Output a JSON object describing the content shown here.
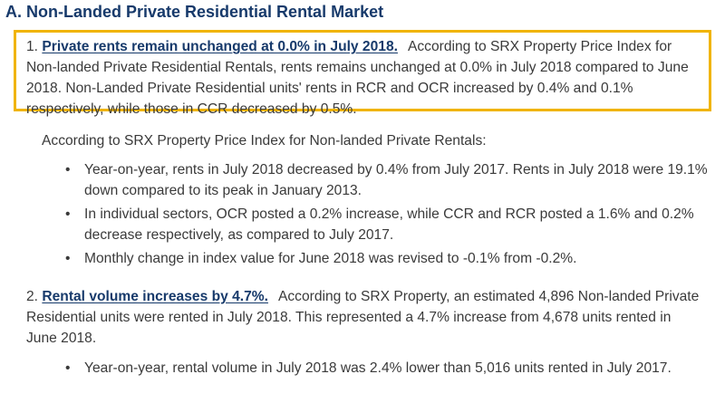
{
  "section": {
    "heading": "A. Non-Landed Private Residential Rental Market"
  },
  "item1": {
    "number": "1.",
    "lead": "Private rents remain unchanged at 0.0% in July 2018.",
    "body": "According to SRX Property Price Index for Non-landed Private Residential Rentals, rents remains unchanged at 0.0% in July 2018 compared to June 2018. Non-Landed Private Residential units' rents in RCR and OCR increased by 0.4% and 0.1% respectively, while those in CCR decreased by 0.5%.",
    "highlight_color": "#f0b400"
  },
  "intro": "According to SRX Property Price Index for Non-landed Private Rentals:",
  "bullets_a": [
    "Year-on-year, rents in July 2018 decreased by 0.4% from July 2017. Rents in July 2018 were 19.1% down compared to its peak in January 2013.",
    "In individual sectors, OCR posted a 0.2% increase, while CCR and RCR posted a 1.6% and 0.2% decrease respectively, as compared to July 2017.",
    "Monthly change in index value for June 2018 was revised to -0.1% from -0.2%."
  ],
  "item2": {
    "number": "2.",
    "lead": "Rental volume increases by 4.7%.",
    "body": "According to SRX Property, an estimated 4,896 Non-landed Private Residential units were rented in July 2018. This represented a 4.7% increase from 4,678 units rented in June 2018."
  },
  "bullets_b": [
    "Year-on-year, rental volume in July 2018 was 2.4% lower than 5,016 units rented in July 2017."
  ],
  "bullet_glyph": "•",
  "colors": {
    "heading": "#173a6b",
    "body_text": "#3a3a3a"
  }
}
